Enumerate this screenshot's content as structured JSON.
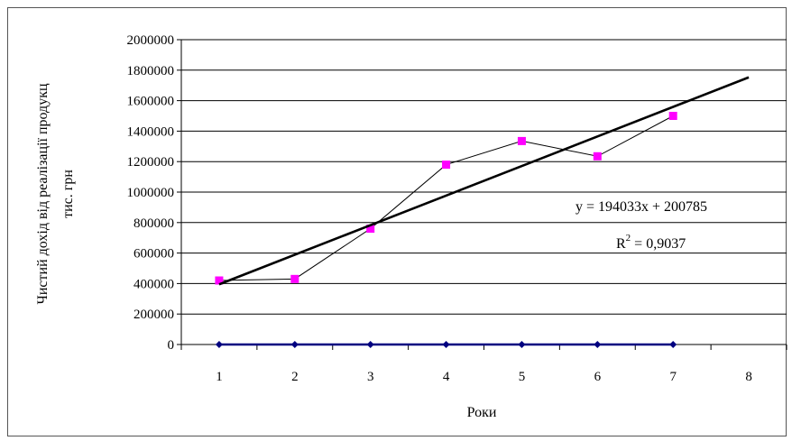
{
  "chart_data": {
    "type": "line",
    "title": "",
    "xlabel": "Роки",
    "ylabel_line1": "Чистий дохід від реалізації продукц",
    "ylabel_line2": "тис. грн",
    "x": [
      1,
      2,
      3,
      4,
      5,
      6,
      7,
      8
    ],
    "x_tick_labels": [
      "1",
      "2",
      "3",
      "4",
      "5",
      "6",
      "7",
      "8"
    ],
    "ylim": [
      0,
      2000000
    ],
    "y_ticks": [
      0,
      200000,
      400000,
      600000,
      800000,
      1000000,
      1200000,
      1400000,
      1600000,
      1800000,
      2000000
    ],
    "y_tick_labels": [
      "0",
      "200000",
      "400000",
      "600000",
      "800000",
      "1000000",
      "1200000",
      "1400000",
      "1600000",
      "1800000",
      "2000000"
    ],
    "grid": true,
    "series": [
      {
        "x": [
          1,
          2,
          3,
          4,
          5,
          6,
          7
        ],
        "values": [
          420000,
          430000,
          760000,
          1180000,
          1335000,
          1235000,
          1500000
        ],
        "color": "#ff00ff",
        "line_color": "#000000",
        "marker": "square"
      },
      {
        "x": [
          1,
          2,
          3,
          4,
          5,
          6,
          7
        ],
        "values": [
          0,
          0,
          0,
          0,
          0,
          0,
          0
        ],
        "color": "#000080",
        "marker": "diamond"
      }
    ],
    "trendline": {
      "slope": 194033,
      "intercept": 200785,
      "x_range": [
        1,
        8
      ],
      "color": "#000000",
      "equation_text": "y = 194033x + 200785",
      "r2_prefix": "R",
      "r2_exponent": "2",
      "r2_suffix": " = 0,9037"
    }
  }
}
